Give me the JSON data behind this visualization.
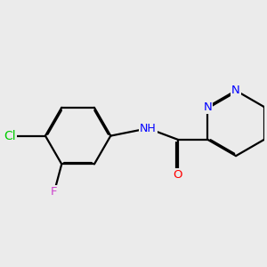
{
  "background_color": "#ebebeb",
  "bond_color": "#000000",
  "bond_width": 1.6,
  "figsize": [
    3.0,
    3.0
  ],
  "dpi": 100,
  "atom_colors": {
    "N": "#0000ff",
    "O": "#ff0000",
    "Cl": "#00cc00",
    "F": "#cc44cc",
    "NH": "#0000ff"
  },
  "fontsize": 9.5
}
